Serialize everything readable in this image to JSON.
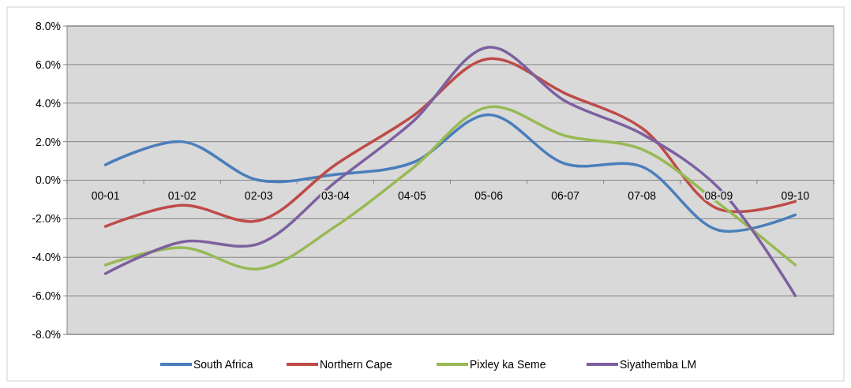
{
  "chart_data": {
    "type": "line",
    "categories": [
      "00-01",
      "01-02",
      "02-03",
      "03-04",
      "04-05",
      "05-06",
      "06-07",
      "07-08",
      "08-09",
      "09-10"
    ],
    "ylim": [
      -8,
      8
    ],
    "yticks": [
      {
        "value": -8,
        "label": "-8.0%"
      },
      {
        "value": -6,
        "label": "-6.0%"
      },
      {
        "value": -4,
        "label": "-4.0%"
      },
      {
        "value": -2,
        "label": "-2.0%"
      },
      {
        "value": 0,
        "label": "0.0%"
      },
      {
        "value": 2,
        "label": "2.0%"
      },
      {
        "value": 4,
        "label": "4.0%"
      },
      {
        "value": 6,
        "label": "6.0%"
      },
      {
        "value": 8,
        "label": "8.0%"
      }
    ],
    "grid": "y",
    "legend": "bottom",
    "marker": "none",
    "line_style": "solid",
    "series": [
      {
        "name": "South Africa",
        "color": "#4a7ebb",
        "values": [
          0.8,
          2.0,
          0.0,
          0.3,
          0.9,
          3.4,
          0.85,
          0.7,
          -2.6,
          -1.8
        ]
      },
      {
        "name": "Northern Cape",
        "color": "#be4b48",
        "values": [
          -2.4,
          -1.3,
          -2.1,
          0.8,
          3.3,
          6.3,
          4.5,
          2.7,
          -1.5,
          -1.1
        ]
      },
      {
        "name": "Pixley ka Seme",
        "color": "#98b954",
        "values": [
          -4.4,
          -3.5,
          -4.6,
          -2.4,
          0.6,
          3.8,
          2.3,
          1.6,
          -1.2,
          -4.4
        ]
      },
      {
        "name": "Siyathemba LM",
        "color": "#7d60a0",
        "values": [
          -4.85,
          -3.2,
          -3.3,
          -0.1,
          3.0,
          6.9,
          4.1,
          2.4,
          -0.4,
          -6.0
        ]
      }
    ]
  }
}
